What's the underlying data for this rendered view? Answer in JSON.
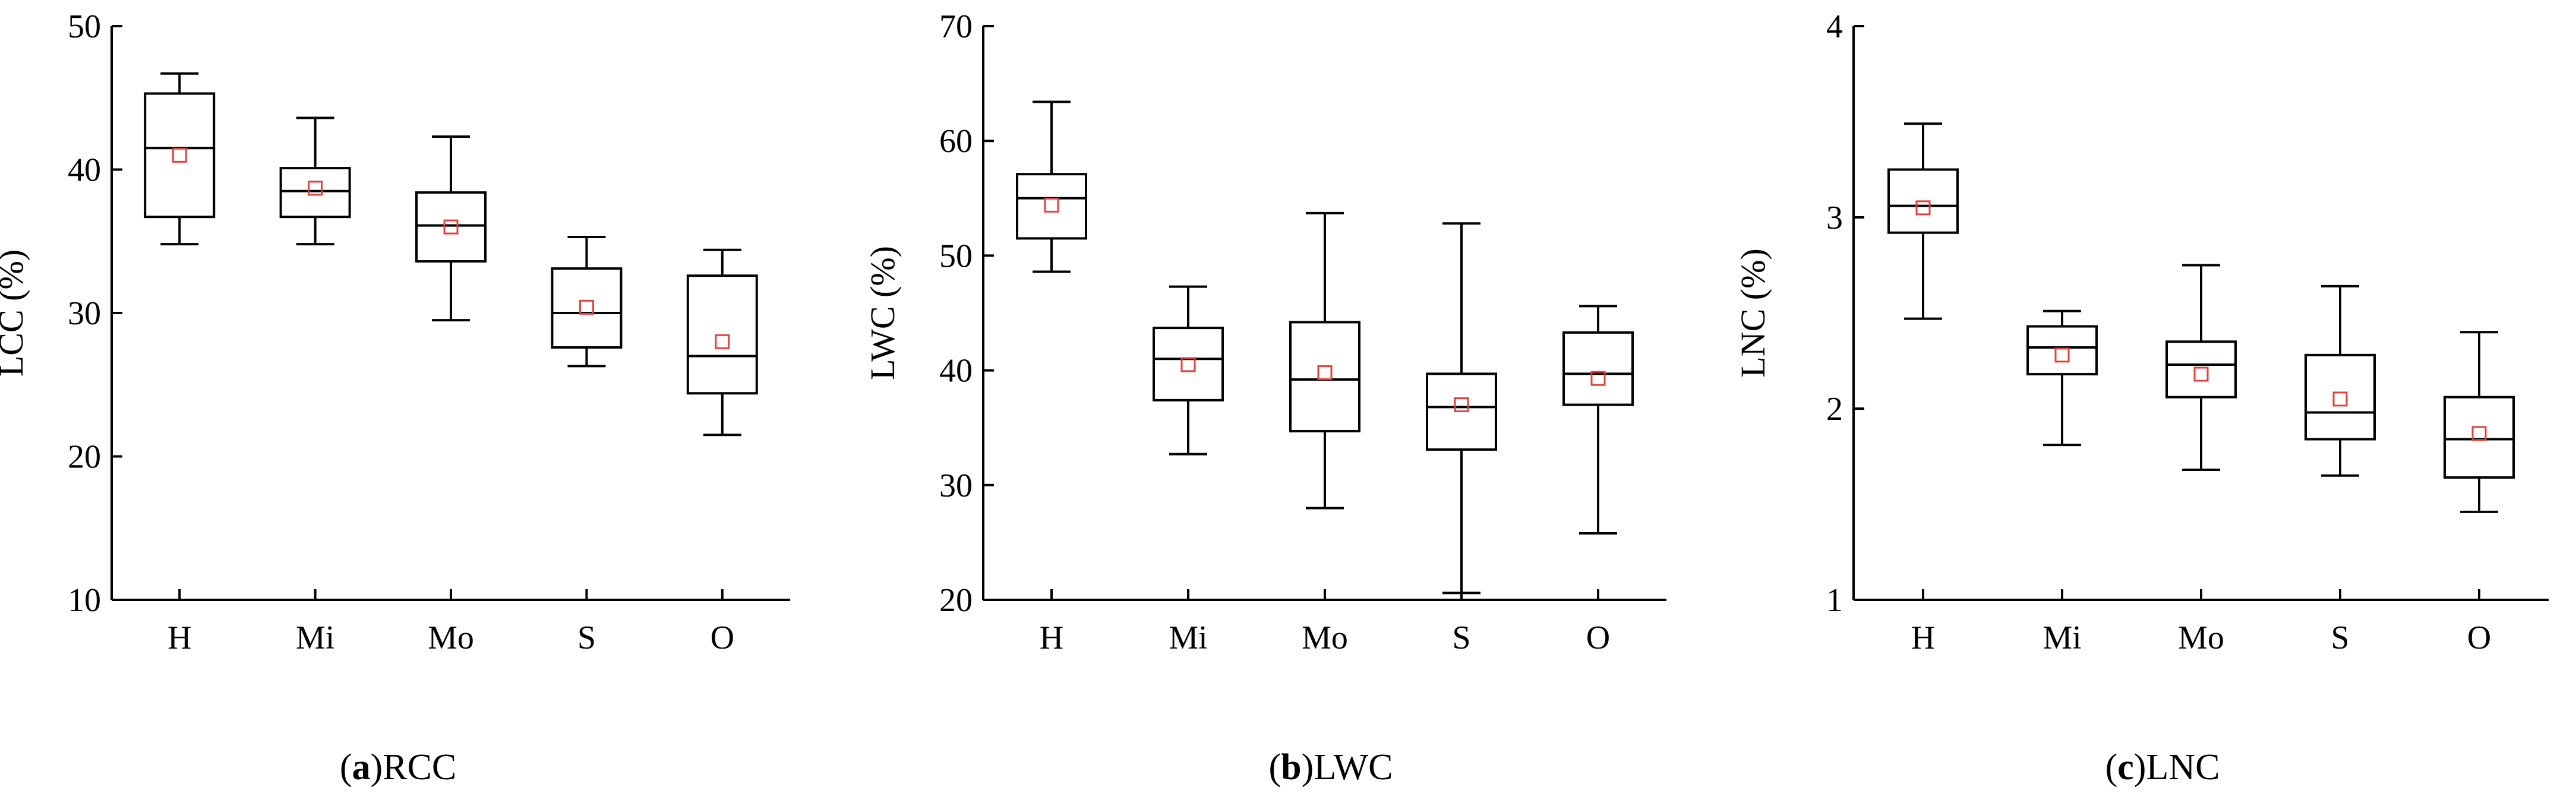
{
  "figure": {
    "panels": [
      {
        "caption_letter": "a",
        "caption_open": "(",
        "caption_close": ")",
        "caption_name": "RCC"
      },
      {
        "caption_letter": "b",
        "caption_open": "(",
        "caption_close": ")",
        "caption_name": "LWC"
      },
      {
        "caption_letter": "c",
        "caption_open": "(",
        "caption_close": ")",
        "caption_name": "LNC"
      }
    ]
  },
  "chart_data": [
    {
      "type": "box",
      "ylabel": "LCC (%)",
      "ylim": [
        10,
        50
      ],
      "yticks": [
        10,
        20,
        30,
        40,
        50
      ],
      "categories": [
        "H",
        "Mi",
        "Mo",
        "S",
        "O"
      ],
      "mean_color": "#e0413a",
      "boxes": [
        {
          "min": 34.8,
          "q1": 36.7,
          "median": 41.5,
          "q3": 45.3,
          "max": 46.7,
          "mean": 41.0
        },
        {
          "min": 34.8,
          "q1": 36.7,
          "median": 38.5,
          "q3": 40.1,
          "max": 43.6,
          "mean": 38.7
        },
        {
          "min": 29.5,
          "q1": 33.6,
          "median": 36.1,
          "q3": 38.4,
          "max": 42.3,
          "mean": 36.0
        },
        {
          "min": 26.3,
          "q1": 27.6,
          "median": 30.0,
          "q3": 33.1,
          "max": 35.3,
          "mean": 30.4
        },
        {
          "min": 21.5,
          "q1": 24.4,
          "median": 27.0,
          "q3": 32.6,
          "max": 34.4,
          "mean": 28.0
        }
      ]
    },
    {
      "type": "box",
      "ylabel": "LWC (%)",
      "ylim": [
        20,
        70
      ],
      "yticks": [
        20,
        30,
        40,
        50,
        60,
        70
      ],
      "categories": [
        "H",
        "Mi",
        "Mo",
        "S",
        "O"
      ],
      "mean_color": "#e0413a",
      "boxes": [
        {
          "min": 48.6,
          "q1": 51.5,
          "median": 55.0,
          "q3": 57.1,
          "max": 63.4,
          "mean": 54.4
        },
        {
          "min": 32.7,
          "q1": 37.4,
          "median": 41.0,
          "q3": 43.7,
          "max": 47.3,
          "mean": 40.5
        },
        {
          "min": 28.0,
          "q1": 34.7,
          "median": 39.2,
          "q3": 44.2,
          "max": 53.7,
          "mean": 39.8
        },
        {
          "min": 20.6,
          "q1": 33.1,
          "median": 36.8,
          "q3": 39.7,
          "max": 52.8,
          "mean": 37.0
        },
        {
          "min": 25.8,
          "q1": 37.0,
          "median": 39.7,
          "q3": 43.3,
          "max": 45.6,
          "mean": 39.3
        }
      ]
    },
    {
      "type": "box",
      "ylabel": "LNC (%)",
      "ylim": [
        1,
        4
      ],
      "yticks": [
        1,
        2,
        3,
        4
      ],
      "categories": [
        "H",
        "Mi",
        "Mo",
        "S",
        "O"
      ],
      "mean_color": "#e0413a",
      "boxes": [
        {
          "min": 2.47,
          "q1": 2.92,
          "median": 3.06,
          "q3": 3.25,
          "max": 3.49,
          "mean": 3.05
        },
        {
          "min": 1.81,
          "q1": 2.18,
          "median": 2.32,
          "q3": 2.43,
          "max": 2.51,
          "mean": 2.28
        },
        {
          "min": 1.68,
          "q1": 2.06,
          "median": 2.23,
          "q3": 2.35,
          "max": 2.75,
          "mean": 2.18
        },
        {
          "min": 1.65,
          "q1": 1.84,
          "median": 1.98,
          "q3": 2.28,
          "max": 2.64,
          "mean": 2.05
        },
        {
          "min": 1.46,
          "q1": 1.64,
          "median": 1.84,
          "q3": 2.06,
          "max": 2.4,
          "mean": 1.87
        }
      ]
    }
  ]
}
